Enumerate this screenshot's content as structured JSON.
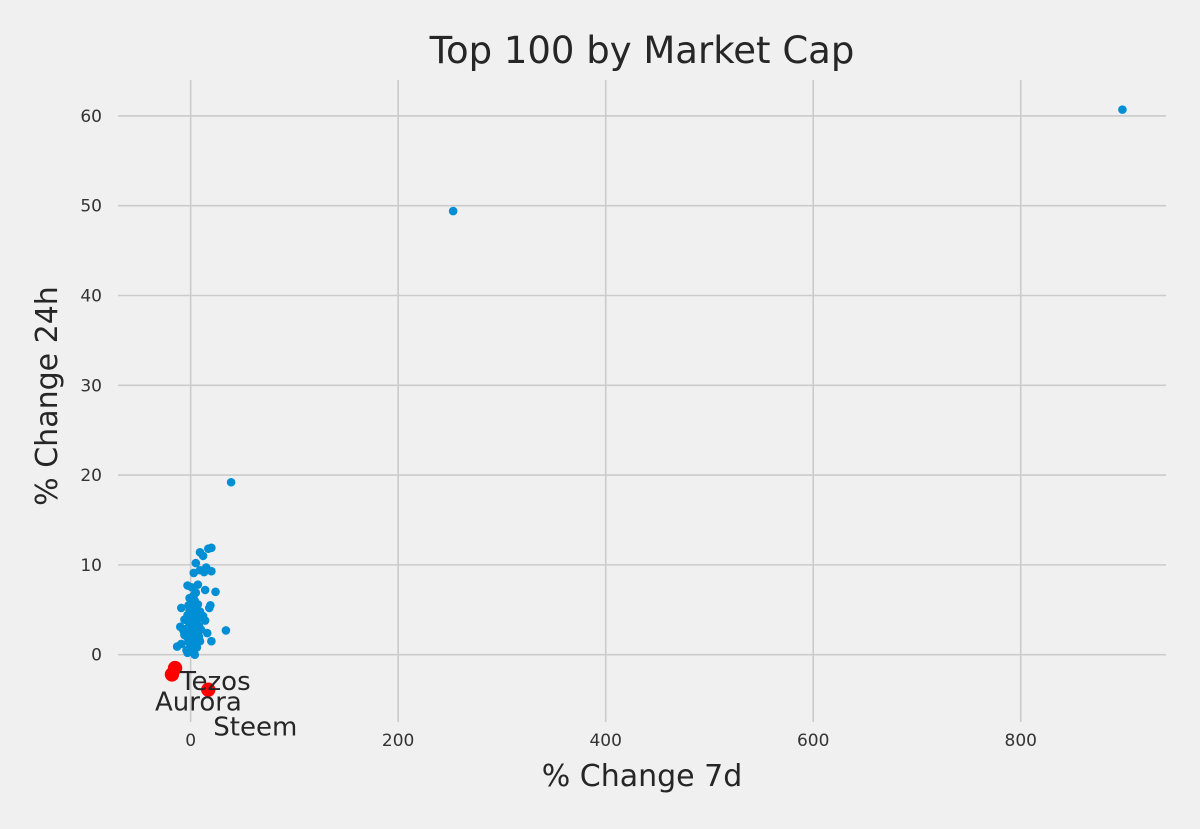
{
  "chart_data": {
    "type": "scatter",
    "title": "Top 100 by Market Cap",
    "xlabel": "% Change 7d",
    "ylabel": "% Change 24h",
    "xlim": [
      -70,
      940
    ],
    "ylim": [
      -7.5,
      64
    ],
    "xticks": [
      0,
      200,
      400,
      600,
      800
    ],
    "yticks": [
      0,
      10,
      20,
      30,
      40,
      50,
      60
    ],
    "grid": true,
    "colors": {
      "points": "#008fd5",
      "highlight": "#ff0000",
      "grid": "#cbcbcb",
      "background": "#f0f0f0"
    },
    "points": [
      {
        "x": 898,
        "y": 60.7
      },
      {
        "x": 253,
        "y": 49.4
      },
      {
        "x": 39,
        "y": 19.2
      },
      {
        "x": 20,
        "y": 11.9
      },
      {
        "x": 17,
        "y": 11.8
      },
      {
        "x": 9,
        "y": 11.4
      },
      {
        "x": 12,
        "y": 11.0
      },
      {
        "x": 5,
        "y": 10.2
      },
      {
        "x": 15,
        "y": 9.7
      },
      {
        "x": 9,
        "y": 9.4
      },
      {
        "x": 20,
        "y": 9.3
      },
      {
        "x": 3,
        "y": 9.1
      },
      {
        "x": 13,
        "y": 9.2
      },
      {
        "x": 7,
        "y": 7.8
      },
      {
        "x": -3,
        "y": 7.7
      },
      {
        "x": 1,
        "y": 7.5
      },
      {
        "x": 14,
        "y": 7.2
      },
      {
        "x": 24,
        "y": 7.0
      },
      {
        "x": 5,
        "y": 6.9
      },
      {
        "x": 3,
        "y": 6.6
      },
      {
        "x": -1,
        "y": 6.3
      },
      {
        "x": 4,
        "y": 6.0
      },
      {
        "x": 1,
        "y": 5.8
      },
      {
        "x": -2,
        "y": 5.5
      },
      {
        "x": 7,
        "y": 5.6
      },
      {
        "x": 19,
        "y": 5.5
      },
      {
        "x": 18,
        "y": 5.2
      },
      {
        "x": -9,
        "y": 5.2
      },
      {
        "x": 3,
        "y": 5.2
      },
      {
        "x": -1,
        "y": 4.9
      },
      {
        "x": 9,
        "y": 4.8
      },
      {
        "x": 2,
        "y": 4.6
      },
      {
        "x": -3,
        "y": 4.4
      },
      {
        "x": 4,
        "y": 4.4
      },
      {
        "x": 12,
        "y": 4.3
      },
      {
        "x": 1,
        "y": 4.1
      },
      {
        "x": 7,
        "y": 4.0
      },
      {
        "x": -6,
        "y": 3.9
      },
      {
        "x": 14,
        "y": 3.8
      },
      {
        "x": 3,
        "y": 3.7
      },
      {
        "x": -1,
        "y": 3.5
      },
      {
        "x": 5,
        "y": 3.5
      },
      {
        "x": 0,
        "y": 3.3
      },
      {
        "x": 8,
        "y": 3.2
      },
      {
        "x": -10,
        "y": 3.1
      },
      {
        "x": 2,
        "y": 3.0
      },
      {
        "x": -4,
        "y": 2.9
      },
      {
        "x": 4,
        "y": 2.9
      },
      {
        "x": 10,
        "y": 2.8
      },
      {
        "x": -7,
        "y": 2.7
      },
      {
        "x": 34,
        "y": 2.7
      },
      {
        "x": 1,
        "y": 2.6
      },
      {
        "x": -2,
        "y": 2.5
      },
      {
        "x": 6,
        "y": 2.4
      },
      {
        "x": 16,
        "y": 2.4
      },
      {
        "x": 3,
        "y": 2.3
      },
      {
        "x": -6,
        "y": 2.2
      },
      {
        "x": 0,
        "y": 2.1
      },
      {
        "x": 8,
        "y": 2.0
      },
      {
        "x": -3,
        "y": 1.9
      },
      {
        "x": 2,
        "y": 1.8
      },
      {
        "x": 5,
        "y": 1.6
      },
      {
        "x": 9,
        "y": 1.5
      },
      {
        "x": 20,
        "y": 1.5
      },
      {
        "x": -2,
        "y": 1.4
      },
      {
        "x": 3,
        "y": 1.3
      },
      {
        "x": -9,
        "y": 1.2
      },
      {
        "x": 0,
        "y": 1.1
      },
      {
        "x": -13,
        "y": 0.9
      },
      {
        "x": 6,
        "y": 0.8
      },
      {
        "x": 1,
        "y": 0.6
      },
      {
        "x": -4,
        "y": 0.5
      },
      {
        "x": 2,
        "y": 0.3
      },
      {
        "x": 4,
        "y": 0.0
      },
      {
        "x": -3,
        "y": 0.2
      },
      {
        "x": 0,
        "y": 2.7
      },
      {
        "x": 2,
        "y": 4.2
      },
      {
        "x": -2,
        "y": 3.7
      },
      {
        "x": 1,
        "y": 5.1
      },
      {
        "x": 5,
        "y": 2.2
      }
    ],
    "highlighted": [
      {
        "name": "Tezos",
        "x": -15,
        "y": -1.5
      },
      {
        "name": "Aurora",
        "x": -18,
        "y": -2.2
      },
      {
        "name": "Steem",
        "x": 17,
        "y": -3.9
      }
    ]
  }
}
